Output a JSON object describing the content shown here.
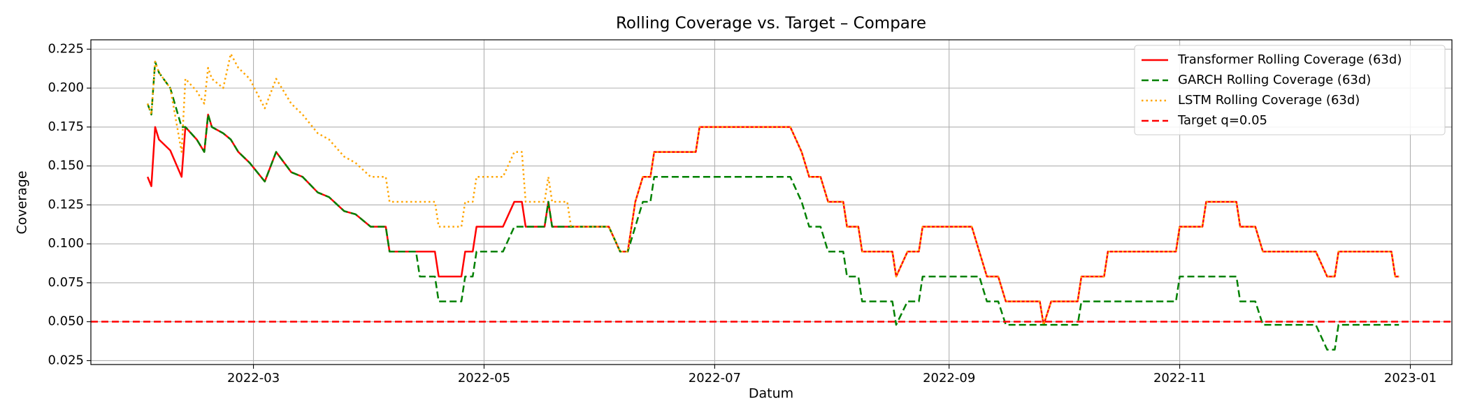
{
  "chart_data": {
    "type": "line",
    "title": "Rolling Coverage vs. Target – Compare",
    "x_label": "Datum",
    "y_label": "Coverage",
    "grid": true,
    "legend": "upper right",
    "xlim": [
      "2022-01-17",
      "2023-01-12"
    ],
    "xticks": [
      {
        "value": "2022-03-01",
        "label": "2022-03"
      },
      {
        "value": "2022-05-01",
        "label": "2022-05"
      },
      {
        "value": "2022-07-01",
        "label": "2022-07"
      },
      {
        "value": "2022-09-01",
        "label": "2022-09"
      },
      {
        "value": "2022-11-01",
        "label": "2022-11"
      },
      {
        "value": "2023-01-01",
        "label": "2023-01"
      }
    ],
    "ylim": [
      0.0225,
      0.231
    ],
    "yticks": [
      0.025,
      {
        "value": 0.05,
        "label": "0.050"
      },
      0.075,
      {
        "value": 0.1,
        "label": "0.100"
      },
      0.125,
      {
        "value": 0.15,
        "label": "0.150"
      },
      0.175,
      {
        "value": 0.2,
        "label": "0.200"
      },
      0.225
    ],
    "x": [
      "2022-02-01",
      "2022-02-02",
      "2022-02-03",
      "2022-02-04",
      "2022-02-07",
      "2022-02-10",
      "2022-02-11",
      "2022-02-14",
      "2022-02-16",
      "2022-02-17",
      "2022-02-18",
      "2022-02-21",
      "2022-02-23",
      "2022-02-25",
      "2022-02-28",
      "2022-03-04",
      "2022-03-07",
      "2022-03-11",
      "2022-03-14",
      "2022-03-18",
      "2022-03-21",
      "2022-03-25",
      "2022-03-28",
      "2022-04-01",
      "2022-04-05",
      "2022-04-06",
      "2022-04-13",
      "2022-04-14",
      "2022-04-18",
      "2022-04-19",
      "2022-04-25",
      "2022-04-26",
      "2022-04-28",
      "2022-04-29",
      "2022-05-06",
      "2022-05-09",
      "2022-05-11",
      "2022-05-12",
      "2022-05-17",
      "2022-05-18",
      "2022-05-19",
      "2022-05-23",
      "2022-05-24",
      "2022-06-03",
      "2022-06-06",
      "2022-06-08",
      "2022-06-10",
      "2022-06-12",
      "2022-06-14",
      "2022-06-15",
      "2022-06-26",
      "2022-06-27",
      "2022-07-21",
      "2022-07-24",
      "2022-07-26",
      "2022-07-29",
      "2022-07-31",
      "2022-08-04",
      "2022-08-05",
      "2022-08-08",
      "2022-08-09",
      "2022-08-17",
      "2022-08-18",
      "2022-08-21",
      "2022-08-24",
      "2022-08-25",
      "2022-09-07",
      "2022-09-09",
      "2022-09-11",
      "2022-09-14",
      "2022-09-16",
      "2022-09-25",
      "2022-09-26",
      "2022-09-28",
      "2022-10-05",
      "2022-10-06",
      "2022-10-12",
      "2022-10-13",
      "2022-10-31",
      "2022-11-01",
      "2022-11-07",
      "2022-11-08",
      "2022-11-16",
      "2022-11-17",
      "2022-11-21",
      "2022-11-23",
      "2022-12-07",
      "2022-12-10",
      "2022-12-12",
      "2022-12-13",
      "2022-12-27",
      "2022-12-28",
      "2022-12-29"
    ],
    "series": [
      {
        "name": "Transformer Rolling Coverage (63d)",
        "color": "#ff0000",
        "linestyle": "solid",
        "values": [
          0.143,
          0.137,
          0.175,
          0.167,
          0.16,
          0.143,
          0.175,
          0.167,
          0.159,
          0.183,
          0.175,
          0.171,
          0.167,
          0.159,
          0.152,
          0.14,
          0.159,
          0.146,
          0.143,
          0.133,
          0.13,
          0.121,
          0.119,
          0.111,
          0.111,
          0.095,
          0.095,
          0.095,
          0.095,
          0.079,
          0.079,
          0.095,
          0.095,
          0.111,
          0.111,
          0.127,
          0.127,
          0.111,
          0.111,
          0.127,
          0.111,
          0.111,
          0.111,
          0.111,
          0.095,
          0.095,
          0.127,
          0.143,
          0.143,
          0.159,
          0.159,
          0.175,
          0.175,
          0.159,
          0.143,
          0.143,
          0.127,
          0.127,
          0.111,
          0.111,
          0.095,
          0.095,
          0.079,
          0.095,
          0.095,
          0.111,
          0.111,
          0.095,
          0.079,
          0.079,
          0.063,
          0.063,
          0.048,
          0.063,
          0.063,
          0.079,
          0.079,
          0.095,
          0.095,
          0.111,
          0.111,
          0.127,
          0.127,
          0.111,
          0.111,
          0.095,
          0.095,
          0.079,
          0.079,
          0.095,
          0.095,
          0.079,
          0.079
        ]
      },
      {
        "name": "GARCH Rolling Coverage (63d)",
        "color": "#008000",
        "linestyle": "dashed",
        "values": [
          0.19,
          0.183,
          0.217,
          0.21,
          0.2,
          0.175,
          0.175,
          0.167,
          0.159,
          0.183,
          0.175,
          0.171,
          0.167,
          0.159,
          0.152,
          0.14,
          0.159,
          0.146,
          0.143,
          0.133,
          0.13,
          0.121,
          0.119,
          0.111,
          0.111,
          0.095,
          0.095,
          0.079,
          0.079,
          0.063,
          0.063,
          0.079,
          0.079,
          0.095,
          0.095,
          0.111,
          0.111,
          0.111,
          0.111,
          0.127,
          0.111,
          0.111,
          0.111,
          0.111,
          0.095,
          0.095,
          0.111,
          0.127,
          0.127,
          0.143,
          0.143,
          0.143,
          0.143,
          0.127,
          0.111,
          0.111,
          0.095,
          0.095,
          0.079,
          0.079,
          0.063,
          0.063,
          0.048,
          0.063,
          0.063,
          0.079,
          0.079,
          0.079,
          0.063,
          0.063,
          0.048,
          0.048,
          0.048,
          0.048,
          0.048,
          0.063,
          0.063,
          0.063,
          0.063,
          0.079,
          0.079,
          0.079,
          0.079,
          0.063,
          0.063,
          0.048,
          0.048,
          0.032,
          0.032,
          0.048,
          0.048,
          0.048,
          0.048
        ]
      },
      {
        "name": "LSTM Rolling Coverage (63d)",
        "color": "#ffa500",
        "linestyle": "dotted",
        "values": [
          0.19,
          0.183,
          0.217,
          0.21,
          0.2,
          0.159,
          0.206,
          0.198,
          0.19,
          0.213,
          0.206,
          0.2,
          0.222,
          0.213,
          0.206,
          0.187,
          0.206,
          0.19,
          0.183,
          0.171,
          0.167,
          0.156,
          0.152,
          0.143,
          0.143,
          0.127,
          0.127,
          0.127,
          0.127,
          0.111,
          0.111,
          0.127,
          0.127,
          0.143,
          0.143,
          0.159,
          0.159,
          0.127,
          0.127,
          0.143,
          0.127,
          0.127,
          0.111,
          0.111,
          0.095,
          0.095,
          0.127,
          0.143,
          0.143,
          0.159,
          0.159,
          0.175,
          0.175,
          0.159,
          0.143,
          0.143,
          0.127,
          0.127,
          0.111,
          0.111,
          0.095,
          0.095,
          0.079,
          0.095,
          0.095,
          0.111,
          0.111,
          0.095,
          0.079,
          0.079,
          0.063,
          0.063,
          0.048,
          0.063,
          0.063,
          0.079,
          0.079,
          0.095,
          0.095,
          0.111,
          0.111,
          0.127,
          0.127,
          0.111,
          0.111,
          0.095,
          0.095,
          0.079,
          0.079,
          0.095,
          0.095,
          0.079,
          0.079
        ]
      }
    ],
    "hlines": [
      {
        "name": "Target q=0.05",
        "value": 0.05,
        "color": "#ff0000",
        "linestyle": "dashed"
      }
    ]
  }
}
